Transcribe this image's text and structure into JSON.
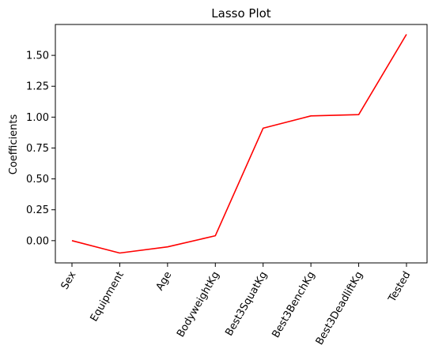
{
  "chart_data": {
    "type": "line",
    "title": "Lasso Plot",
    "xlabel": "",
    "ylabel": "Coefficients",
    "categories": [
      "Sex",
      "Equipment",
      "Age",
      "BodyweightKg",
      "Best3SquatKg",
      "Best3BenchKg",
      "Best3DeadliftKg",
      "Tested"
    ],
    "series": [
      {
        "values": [
          0.0,
          -0.1,
          -0.05,
          0.04,
          0.91,
          1.01,
          1.02,
          1.67
        ],
        "color": "#ff0000"
      }
    ],
    "ylim": [
      -0.18,
      1.75
    ],
    "yticks": [
      0.0,
      0.25,
      0.5,
      0.75,
      1.0,
      1.25,
      1.5
    ],
    "ytick_labels": [
      "0.00",
      "0.25",
      "0.50",
      "0.75",
      "1.00",
      "1.25",
      "1.50"
    ],
    "grid": false,
    "xtick_rotation_deg": 60
  }
}
